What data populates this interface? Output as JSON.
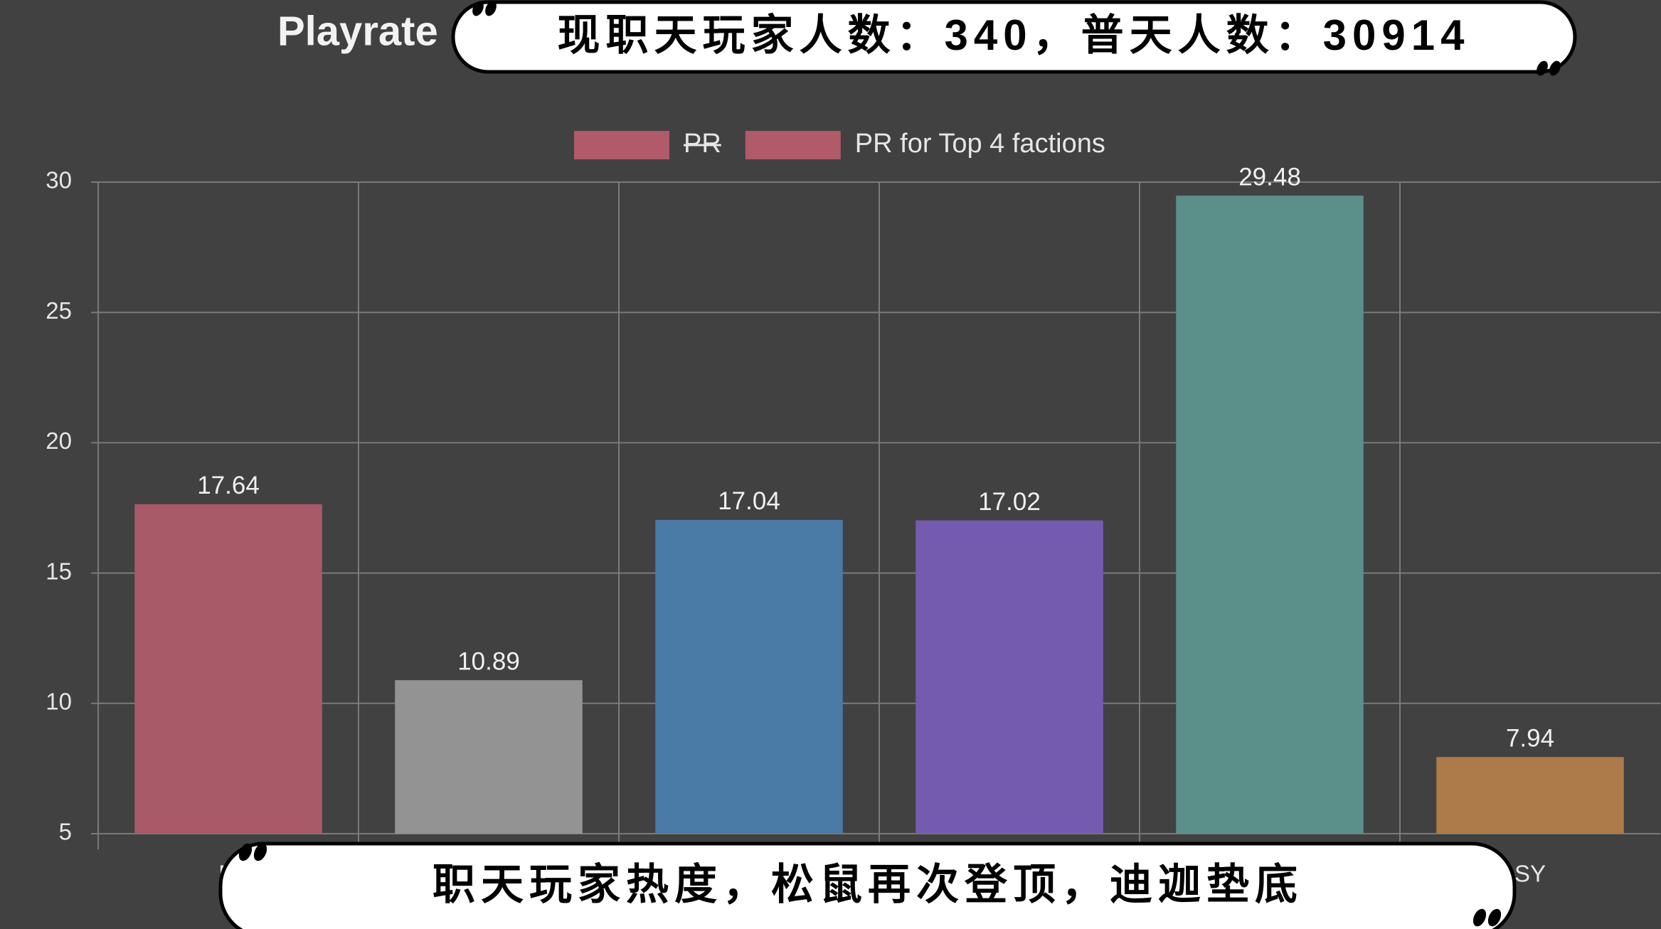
{
  "chart_data": {
    "type": "bar",
    "title": "Playrate",
    "categories": [
      "M",
      null,
      null,
      null,
      null,
      "SY"
    ],
    "series": [
      {
        "name": "PR",
        "color": "#b05a6a",
        "hidden": true
      },
      {
        "name": "PR for Top 4 factions",
        "color": "#b05a6a",
        "colors": [
          "#a85a68",
          "#939393",
          "#4a7aa6",
          "#745bb0",
          "#5a8f8a",
          "#ad7a4a"
        ],
        "values": [
          17.64,
          10.89,
          17.04,
          17.02,
          29.48,
          7.94
        ]
      }
    ],
    "ylim": [
      5,
      30
    ],
    "yticks": [
      5,
      10,
      15,
      20,
      25,
      30
    ],
    "grid": true,
    "legend": "top",
    "show_value_labels": true
  },
  "captions": {
    "top": "现职天玩家人数：340，普天人数：30914",
    "bottom": "职天玩家热度，松鼠再次登顶，迪迦垫底"
  }
}
